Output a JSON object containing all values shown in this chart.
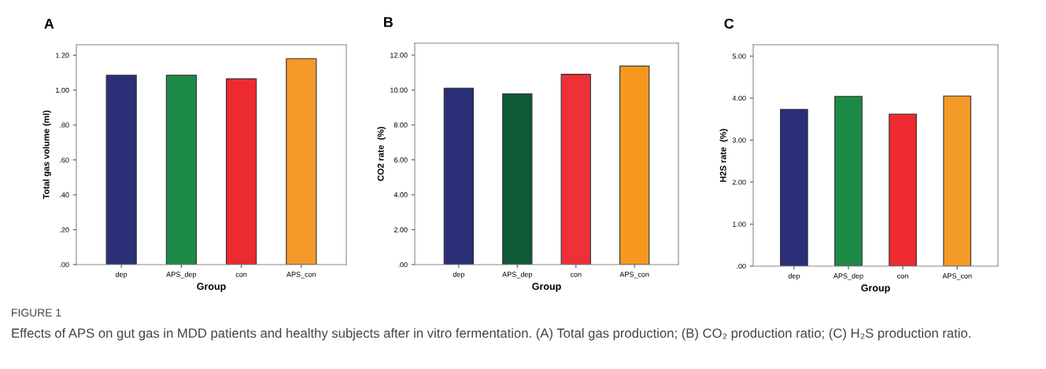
{
  "chart_data": [
    {
      "type": "bar",
      "title": "A",
      "xlabel": "Group",
      "ylabel": "Total gas volume (ml)",
      "categories": [
        "dep",
        "APS_dep",
        "con",
        "APS_con"
      ],
      "values": [
        1.085,
        1.085,
        1.065,
        1.18
      ],
      "colors": [
        "#2a2f78",
        "#1d8a48",
        "#ec2a30",
        "#f39a28"
      ],
      "ylim": [
        0,
        1.26
      ],
      "yticks": [
        {
          "value": 0,
          "label": ".00"
        },
        {
          "value": 0.2,
          "label": ".20"
        },
        {
          "value": 0.4,
          "label": ".40"
        },
        {
          "value": 0.6,
          "label": ".60"
        },
        {
          "value": 0.8,
          "label": ".80"
        },
        {
          "value": 1.0,
          "label": "1.00"
        },
        {
          "value": 1.2,
          "label": "1.20"
        }
      ],
      "grid": false,
      "annotations": [
        "FIGURE 1",
        "Effects of APS on gut gas in MDD patients and healthy subjects after in vitro fermentation. (A) Total gas production; (B) CO₂ production ratio; (C) H₂S production ratio."
      ]
    },
    {
      "type": "bar",
      "title": "B",
      "xlabel": "Group",
      "ylabel": "CO2 rate  (%)",
      "categories": [
        "dep",
        "APS_dep",
        "con",
        "APS_con"
      ],
      "values": [
        10.1,
        9.78,
        10.9,
        11.37
      ],
      "colors": [
        "#2a2f78",
        "#0d5a36",
        "#ee3038",
        "#f7981e"
      ],
      "ylim": [
        0,
        12.68
      ],
      "yticks": [
        {
          "value": 0,
          "label": ".00"
        },
        {
          "value": 2,
          "label": "2.00"
        },
        {
          "value": 4,
          "label": "4.00"
        },
        {
          "value": 6,
          "label": "6.00"
        },
        {
          "value": 8,
          "label": "8.00"
        },
        {
          "value": 10,
          "label": "10.00"
        },
        {
          "value": 12,
          "label": "12.00"
        }
      ],
      "grid": false
    },
    {
      "type": "bar",
      "title": "C",
      "xlabel": "Group",
      "ylabel": "H2S rate  (%)",
      "categories": [
        "dep",
        "APS_dep",
        "con",
        "APS_con"
      ],
      "values": [
        3.73,
        4.04,
        3.62,
        4.05
      ],
      "colors": [
        "#2a2f78",
        "#1d8a48",
        "#ec2a30",
        "#f39a28"
      ],
      "ylim": [
        0,
        5.27
      ],
      "yticks": [
        {
          "value": 0,
          "label": ".00"
        },
        {
          "value": 1,
          "label": "1.00"
        },
        {
          "value": 2,
          "label": "2.00"
        },
        {
          "value": 3,
          "label": "3.00"
        },
        {
          "value": 4,
          "label": "4.00"
        },
        {
          "value": 5,
          "label": "5.00"
        }
      ],
      "grid": false
    }
  ]
}
